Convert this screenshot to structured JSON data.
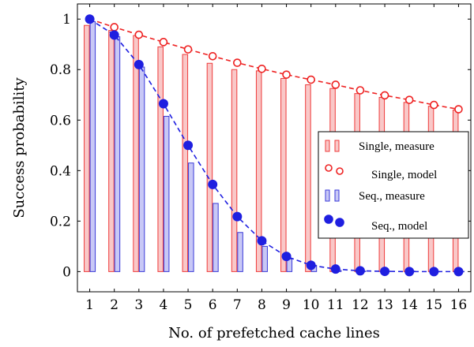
{
  "chart_data": {
    "type": "bar",
    "xlabel": "No. of prefetched cache lines",
    "ylabel": "Success probability",
    "categories": [
      "1",
      "2",
      "3",
      "4",
      "5",
      "6",
      "7",
      "8",
      "9",
      "10",
      "11",
      "12",
      "13",
      "14",
      "15",
      "16"
    ],
    "ylim": [
      -0.08,
      1.06
    ],
    "yticks": [
      "0",
      "0.2",
      "0.4",
      "0.6",
      "0.8",
      "1"
    ],
    "grid": false,
    "legend_position": "right",
    "series": [
      {
        "name": "Single, measure",
        "kind": "bar",
        "fill": "#f9c8c8",
        "stroke": "#ee3b3b",
        "values": [
          0.975,
          0.955,
          0.935,
          0.89,
          0.86,
          0.825,
          0.8,
          0.795,
          0.765,
          0.74,
          0.725,
          0.705,
          0.69,
          0.67,
          0.655,
          0.64
        ]
      },
      {
        "name": "Single, model",
        "kind": "line",
        "color": "#ee2222",
        "marker": "circle-open",
        "values": [
          1.0,
          0.968,
          0.938,
          0.909,
          0.88,
          0.853,
          0.827,
          0.803,
          0.78,
          0.76,
          0.74,
          0.718,
          0.698,
          0.68,
          0.66,
          0.643
        ]
      },
      {
        "name": "Seq., measure",
        "kind": "bar",
        "fill": "#c8c8f6",
        "stroke": "#3a3ad8",
        "values": [
          0.99,
          0.93,
          0.81,
          0.615,
          0.43,
          0.27,
          0.155,
          0.1,
          0.05,
          0.025,
          0.005,
          0.002,
          0.002,
          0.002,
          0.001,
          0.001
        ]
      },
      {
        "name": "Seq., model",
        "kind": "line",
        "color": "#1f1fe0",
        "marker": "circle-filled",
        "values": [
          1.0,
          0.937,
          0.82,
          0.665,
          0.5,
          0.345,
          0.218,
          0.122,
          0.06,
          0.025,
          0.01,
          0.003,
          0.001,
          0.0,
          0.0,
          0.0
        ]
      }
    ],
    "legend": [
      {
        "label": "Single, measure",
        "series": 0
      },
      {
        "label": "Single, model",
        "series": 1
      },
      {
        "label": "Seq., measure",
        "series": 2
      },
      {
        "label": "Seq., model",
        "series": 3
      }
    ]
  }
}
